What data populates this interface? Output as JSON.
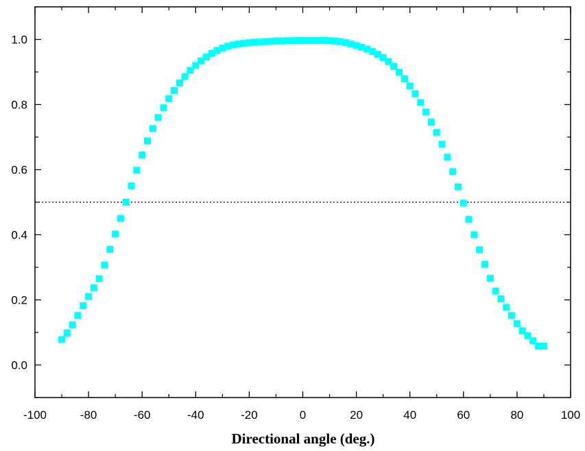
{
  "chart_data": {
    "type": "scatter",
    "title": "",
    "xlabel": "Directional angle (deg.)",
    "ylabel": "",
    "xlim": [
      -100,
      100
    ],
    "ylim": [
      -0.1,
      1.1
    ],
    "x_ticks": [
      "-100",
      "-80",
      "-60",
      "-40",
      "-20",
      "0",
      "20",
      "40",
      "60",
      "80",
      "100"
    ],
    "y_ticks": [
      "0.0",
      "0.2",
      "0.4",
      "0.6",
      "0.8",
      "1.0"
    ],
    "reference_line": {
      "y": 0.5,
      "style": "dotted"
    },
    "marker_color": "#00ffff",
    "series": [
      {
        "x": [
          -90,
          -88,
          -86,
          -84,
          -82,
          -80,
          -78,
          -76,
          -74,
          -72,
          -70,
          -68,
          -66,
          -64,
          -62,
          -60,
          -58,
          -56,
          -54,
          -52,
          -50,
          -48,
          -46,
          -44,
          -42,
          -40,
          -38,
          -36,
          -34,
          -32,
          -30,
          -28,
          -26,
          -24,
          -22,
          -20,
          -18,
          -16,
          -14,
          -12,
          -10,
          -8,
          -6,
          -4,
          -2,
          0,
          2,
          4,
          6,
          8,
          10,
          12,
          14,
          16,
          18,
          20,
          22,
          24,
          26,
          28,
          30,
          32,
          34,
          36,
          38,
          40,
          42,
          44,
          46,
          48,
          50,
          52,
          54,
          56,
          58,
          60,
          62,
          64,
          66,
          68,
          70,
          72,
          74,
          76,
          78,
          80,
          82,
          84,
          86,
          88,
          90
        ],
        "values": [
          0.078,
          0.098,
          0.123,
          0.152,
          0.182,
          0.21,
          0.237,
          0.265,
          0.307,
          0.355,
          0.402,
          0.45,
          0.5,
          0.55,
          0.598,
          0.645,
          0.688,
          0.726,
          0.76,
          0.79,
          0.818,
          0.843,
          0.866,
          0.886,
          0.905,
          0.92,
          0.934,
          0.946,
          0.957,
          0.966,
          0.973,
          0.979,
          0.983,
          0.986,
          0.988,
          0.99,
          0.991,
          0.992,
          0.993,
          0.994,
          0.995,
          0.995,
          0.996,
          0.996,
          0.997,
          0.997,
          0.997,
          0.997,
          0.997,
          0.997,
          0.996,
          0.995,
          0.993,
          0.99,
          0.986,
          0.981,
          0.976,
          0.97,
          0.963,
          0.954,
          0.944,
          0.932,
          0.917,
          0.899,
          0.879,
          0.857,
          0.833,
          0.806,
          0.777,
          0.746,
          0.714,
          0.678,
          0.638,
          0.594,
          0.547,
          0.497,
          0.447,
          0.4,
          0.354,
          0.309,
          0.266,
          0.227,
          0.203,
          0.177,
          0.152,
          0.127,
          0.105,
          0.09,
          0.074,
          0.058,
          0.058
        ]
      }
    ]
  }
}
